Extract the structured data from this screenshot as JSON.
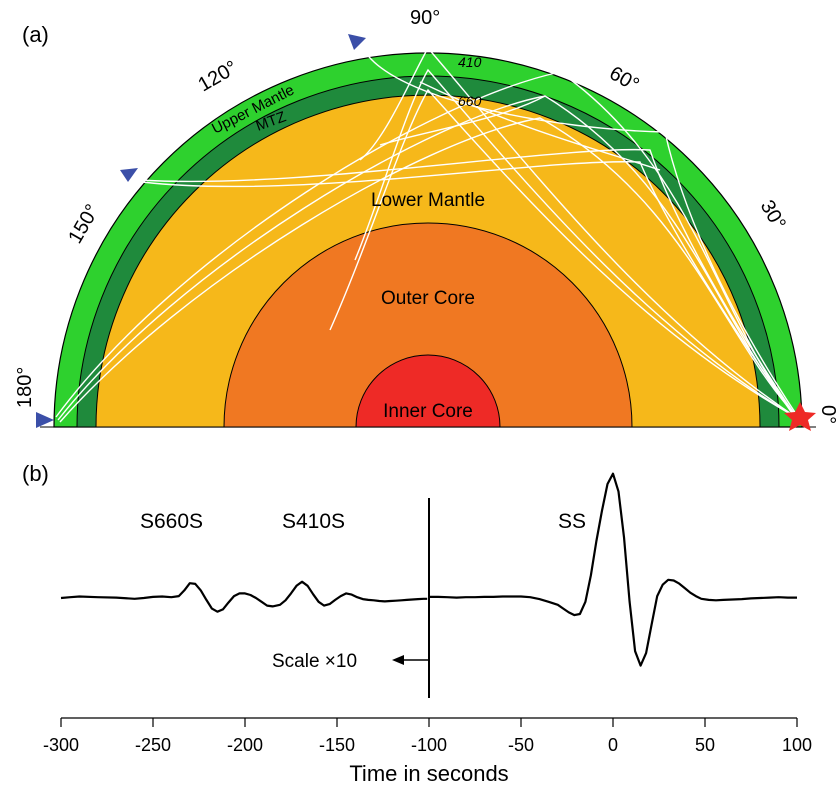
{
  "panel_a": {
    "label": "(a)",
    "layers": {
      "upper_mantle": "Upper Mantle",
      "mtz": "MTZ",
      "lower_mantle": "Lower Mantle",
      "outer_core": "Outer Core",
      "inner_core": "Inner Core",
      "d410": "410",
      "d660": "660"
    },
    "degree_labels": [
      "0°",
      "30°",
      "60°",
      "90°",
      "120°",
      "150°",
      "180°"
    ],
    "colors": {
      "upper_mantle": "#2ed12e",
      "mtz": "#1f8a3c",
      "lower_mantle": "#f6b81a",
      "outer_core": "#f07822",
      "inner_core": "#ee2a26",
      "receiver": "#3b4fa8",
      "source": "#ee2a26",
      "ray": "#ffffff"
    }
  },
  "panel_b": {
    "label": "(b)",
    "phases": [
      "S660S",
      "S410S",
      "SS"
    ],
    "scale_note": "Scale ×10"
  },
  "chart_data": {
    "type": "line",
    "title": "",
    "xlabel": "Time in seconds",
    "ylabel": "",
    "xlim": [
      -300,
      100
    ],
    "xticks": [
      -300,
      -250,
      -200,
      -150,
      -100,
      -50,
      0,
      50,
      100
    ],
    "tick_labels": [
      "-300",
      "-250",
      "-200",
      "-150",
      "-100",
      "-50",
      "0",
      "50",
      "100"
    ],
    "divider_x": -100,
    "series": [
      {
        "x": [
          -300,
          -295,
          -290,
          -280,
          -270,
          -260,
          -255,
          -250,
          -245,
          -240,
          -236,
          -233,
          -230,
          -227,
          -224,
          -221,
          -218,
          -215,
          -212,
          -209,
          -206,
          -203,
          -200,
          -197,
          -194,
          -191,
          -188,
          -185,
          -181,
          -178,
          -175,
          -172,
          -169,
          -166,
          -163,
          -160,
          -157,
          -154,
          -151,
          -148,
          -145,
          -142,
          -139,
          -136,
          -133,
          -130,
          -127,
          -124,
          -121,
          -118,
          -115,
          -112,
          -109,
          -106,
          -103,
          -101
        ],
        "y": [
          0,
          0.02,
          0.04,
          0.02,
          0.01,
          -0.02,
          0,
          0.03,
          0.04,
          0.02,
          0.05,
          0.2,
          0.39,
          0.37,
          0.2,
          -0.05,
          -0.28,
          -0.36,
          -0.3,
          -0.12,
          0.05,
          0.12,
          0.12,
          0.08,
          0,
          -0.1,
          -0.2,
          -0.22,
          -0.18,
          -0.06,
          0.12,
          0.32,
          0.43,
          0.32,
          0.1,
          -0.1,
          -0.2,
          -0.16,
          -0.05,
          0.05,
          0.12,
          0.09,
          0.02,
          -0.03,
          -0.05,
          -0.06,
          -0.08,
          -0.09,
          -0.08,
          -0.07,
          -0.06,
          -0.05,
          -0.04,
          -0.03,
          -0.02,
          -0.02
        ]
      },
      {
        "x": [
          -100,
          -95,
          -90,
          -85,
          -80,
          -75,
          -70,
          -65,
          -60,
          -55,
          -50,
          -45,
          -40,
          -35,
          -30,
          -27,
          -24,
          -21,
          -18,
          -15,
          -12,
          -9,
          -6,
          -3,
          0,
          3,
          6,
          9,
          12,
          15,
          18,
          21,
          24,
          27,
          30,
          33,
          36,
          39,
          42,
          45,
          48,
          52,
          56,
          60,
          65,
          70,
          75,
          80,
          85,
          90,
          95,
          100
        ],
        "y": [
          0.03,
          0.03,
          0.02,
          0.01,
          0.02,
          0.02,
          0.03,
          0.03,
          0.04,
          0.04,
          0.04,
          0.02,
          -0.03,
          -0.1,
          -0.18,
          -0.28,
          -0.38,
          -0.45,
          -0.42,
          -0.1,
          0.6,
          1.5,
          2.3,
          3.0,
          3.27,
          2.8,
          1.6,
          -0.1,
          -1.4,
          -1.78,
          -1.45,
          -0.7,
          0.05,
          0.35,
          0.48,
          0.46,
          0.38,
          0.26,
          0.14,
          0.05,
          -0.02,
          -0.05,
          -0.06,
          -0.05,
          -0.04,
          -0.03,
          -0.01,
          0,
          0.01,
          0.02,
          0.01,
          0.01
        ]
      }
    ]
  }
}
